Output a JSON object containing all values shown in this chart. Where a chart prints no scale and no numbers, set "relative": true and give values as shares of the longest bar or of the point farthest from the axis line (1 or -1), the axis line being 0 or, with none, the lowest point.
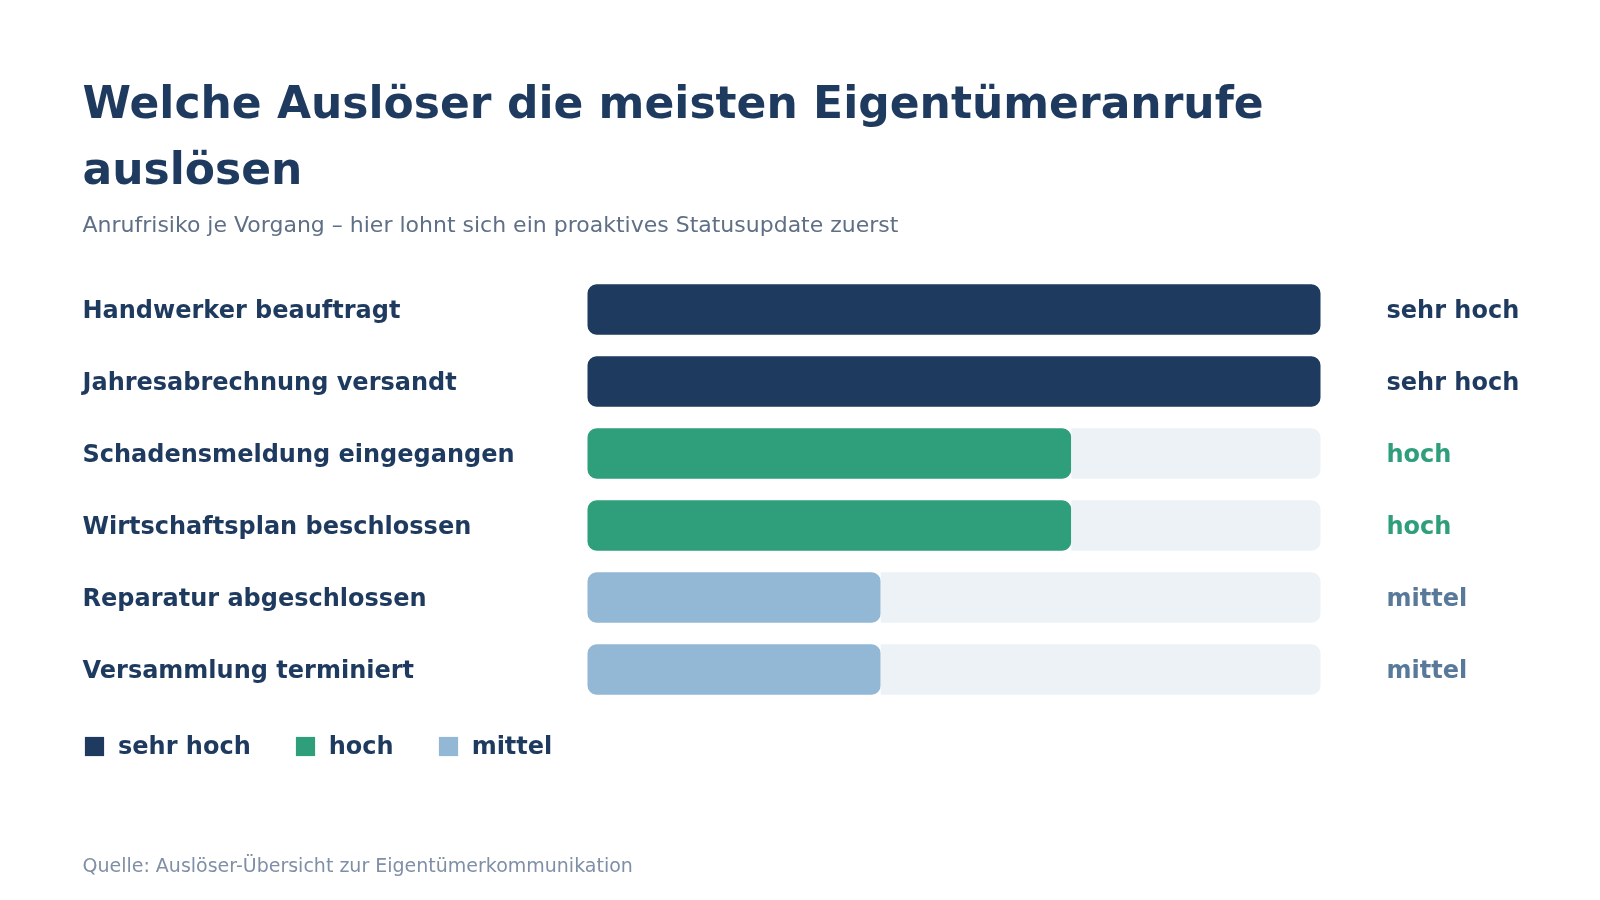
{
  "chart_data": {
    "type": "bar",
    "orientation": "horizontal",
    "stacked": true,
    "relative": true,
    "title": "Welche Auslöser die meisten Eigentümeranrufe auslösen",
    "subtitle": "Anrufrisiko je Vorgang – hier lohnt sich ein proaktives Statusupdate zuerst",
    "categories": [
      "Handwerker beauftragt",
      "Jahresabrechnung versandt",
      "Schadensmeldung eingegangen",
      "Wirtschaftsplan beschlossen",
      "Reparatur abgeschlossen",
      "Versammlung terminiert"
    ],
    "series": [
      {
        "name": "sehr hoch",
        "color": "#1f3a5f",
        "values": [
          1,
          1,
          null,
          null,
          null,
          null
        ]
      },
      {
        "name": "hoch",
        "color": "#2e9e7b",
        "values": [
          null,
          null,
          0.66,
          0.66,
          null,
          null
        ]
      },
      {
        "name": "mittel",
        "color": "#92b8d6",
        "values": [
          null,
          null,
          null,
          null,
          0.4,
          0.4
        ]
      },
      {
        "color": "#edf2f7",
        "values": [
          null,
          null,
          0.34,
          0.34,
          0.6,
          0.6
        ]
      }
    ],
    "totals": [
      "sehr hoch",
      "sehr hoch",
      "hoch",
      "hoch",
      "mittel",
      "mittel"
    ],
    "legend": "bottom left",
    "annotations": [
      "Quelle: Auslöser-Übersicht zur Eigentümerkommunikation"
    ]
  }
}
